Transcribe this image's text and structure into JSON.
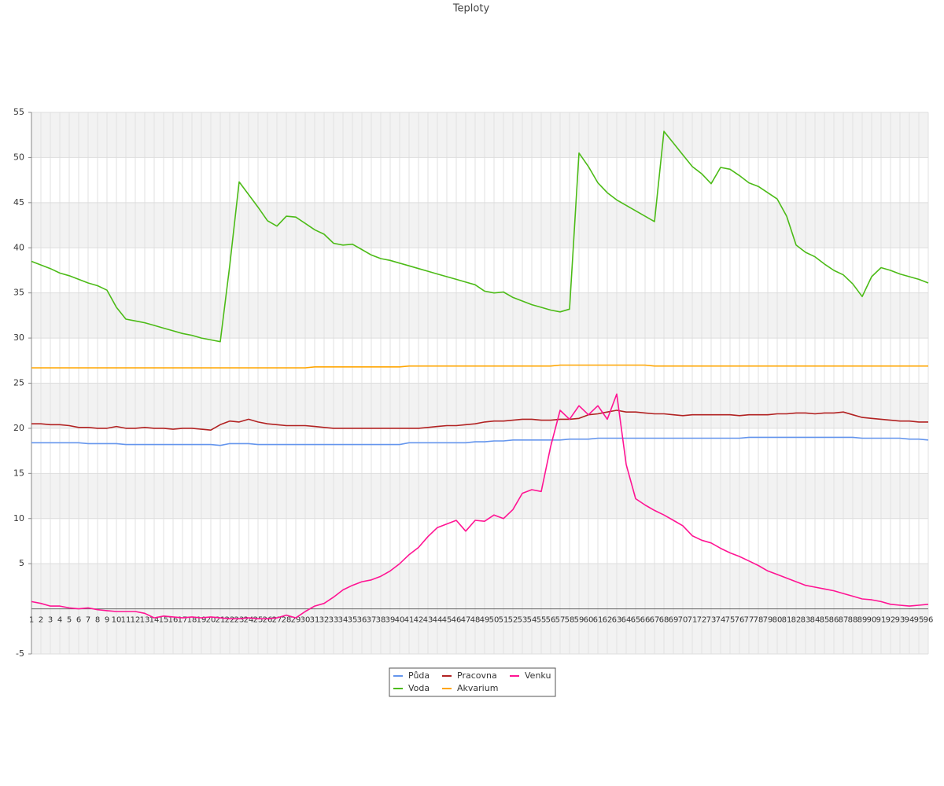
{
  "chart_data": {
    "type": "line",
    "title": "Teploty",
    "categories": [
      1,
      2,
      3,
      4,
      5,
      6,
      7,
      8,
      9,
      10,
      11,
      12,
      13,
      14,
      15,
      16,
      17,
      18,
      19,
      20,
      21,
      22,
      23,
      24,
      25,
      26,
      27,
      28,
      29,
      30,
      31,
      32,
      33,
      34,
      35,
      36,
      37,
      38,
      39,
      40,
      41,
      42,
      43,
      44,
      45,
      46,
      47,
      48,
      49,
      50,
      51,
      52,
      53,
      54,
      55,
      56,
      57,
      58,
      59,
      60,
      61,
      62,
      63,
      64,
      65,
      66,
      67,
      68,
      69,
      70,
      71,
      72,
      73,
      74,
      75,
      76,
      77,
      78,
      79,
      80,
      81,
      82,
      83,
      84,
      85,
      86,
      87,
      88,
      89,
      90,
      91,
      92,
      93,
      94,
      95,
      96
    ],
    "ylim": [
      -5,
      55
    ],
    "yticks": [
      55,
      50,
      45,
      40,
      35,
      30,
      25,
      20,
      15,
      10,
      5,
      -5
    ],
    "grid": true,
    "legend": "bottom",
    "series": [
      {
        "name": "Půda",
        "color": "#6495ed",
        "values": [
          18.4,
          18.4,
          18.4,
          18.4,
          18.4,
          18.4,
          18.3,
          18.3,
          18.3,
          18.3,
          18.2,
          18.2,
          18.2,
          18.2,
          18.2,
          18.2,
          18.2,
          18.2,
          18.2,
          18.2,
          18.1,
          18.3,
          18.3,
          18.3,
          18.2,
          18.2,
          18.2,
          18.2,
          18.2,
          18.2,
          18.2,
          18.2,
          18.2,
          18.2,
          18.2,
          18.2,
          18.2,
          18.2,
          18.2,
          18.2,
          18.4,
          18.4,
          18.4,
          18.4,
          18.4,
          18.4,
          18.4,
          18.5,
          18.5,
          18.6,
          18.6,
          18.7,
          18.7,
          18.7,
          18.7,
          18.7,
          18.7,
          18.8,
          18.8,
          18.8,
          18.9,
          18.9,
          18.9,
          18.9,
          18.9,
          18.9,
          18.9,
          18.9,
          18.9,
          18.9,
          18.9,
          18.9,
          18.9,
          18.9,
          18.9,
          18.9,
          19,
          19,
          19,
          19,
          19,
          19,
          19,
          19,
          19,
          19,
          19,
          19,
          18.9,
          18.9,
          18.9,
          18.9,
          18.9,
          18.8,
          18.8,
          18.7
        ]
      },
      {
        "name": "Voda",
        "color": "#4cbb17",
        "values": [
          38.5,
          38.1,
          37.7,
          37.2,
          36.9,
          36.5,
          36.1,
          35.8,
          35.3,
          33.4,
          32.1,
          31.9,
          31.7,
          31.4,
          31.1,
          30.8,
          30.5,
          30.3,
          30.0,
          29.8,
          29.6,
          38,
          47.3,
          45.9,
          44.5,
          43,
          42.4,
          43.5,
          43.4,
          42.7,
          42,
          41.5,
          40.5,
          40.3,
          40.4,
          39.8,
          39.2,
          38.8,
          38.6,
          38.3,
          38,
          37.7,
          37.4,
          37.1,
          36.8,
          36.5,
          36.2,
          35.9,
          35.2,
          35,
          35.1,
          34.5,
          34.1,
          33.7,
          33.4,
          33.1,
          32.9,
          33.2,
          50.5,
          49,
          47.2,
          46.1,
          45.3,
          44.7,
          44.1,
          43.5,
          42.9,
          52.9,
          51.6,
          50.3,
          49,
          48.2,
          47.1,
          48.9,
          48.7,
          48,
          47.2,
          46.8,
          46.1,
          45.4,
          43.5,
          40.3,
          39.5,
          39,
          38.2,
          37.5,
          37,
          36,
          34.6,
          36.8,
          37.8,
          37.5,
          37.1,
          36.8,
          36.5,
          36.1
        ]
      },
      {
        "name": "Pracovna",
        "color": "#b22222",
        "values": [
          20.5,
          20.5,
          20.4,
          20.4,
          20.3,
          20.1,
          20.1,
          20,
          20,
          20.2,
          20,
          20,
          20.1,
          20,
          20,
          19.9,
          20,
          20,
          19.9,
          19.8,
          20.4,
          20.8,
          20.7,
          21,
          20.7,
          20.5,
          20.4,
          20.3,
          20.3,
          20.3,
          20.2,
          20.1,
          20,
          20,
          20,
          20,
          20,
          20,
          20,
          20,
          20,
          20,
          20.1,
          20.2,
          20.3,
          20.3,
          20.4,
          20.5,
          20.7,
          20.8,
          20.8,
          20.9,
          21,
          21,
          20.9,
          20.9,
          21,
          21,
          21.1,
          21.5,
          21.6,
          21.8,
          22,
          21.8,
          21.8,
          21.7,
          21.6,
          21.6,
          21.5,
          21.4,
          21.5,
          21.5,
          21.5,
          21.5,
          21.5,
          21.4,
          21.5,
          21.5,
          21.5,
          21.6,
          21.6,
          21.7,
          21.7,
          21.6,
          21.7,
          21.7,
          21.8,
          21.5,
          21.2,
          21.1,
          21,
          20.9,
          20.8,
          20.8,
          20.7,
          20.7
        ]
      },
      {
        "name": "Akvarium",
        "color": "#ffa500",
        "values": [
          26.7,
          26.7,
          26.7,
          26.7,
          26.7,
          26.7,
          26.7,
          26.7,
          26.7,
          26.7,
          26.7,
          26.7,
          26.7,
          26.7,
          26.7,
          26.7,
          26.7,
          26.7,
          26.7,
          26.7,
          26.7,
          26.7,
          26.7,
          26.7,
          26.7,
          26.7,
          26.7,
          26.7,
          26.7,
          26.7,
          26.8,
          26.8,
          26.8,
          26.8,
          26.8,
          26.8,
          26.8,
          26.8,
          26.8,
          26.8,
          26.9,
          26.9,
          26.9,
          26.9,
          26.9,
          26.9,
          26.9,
          26.9,
          26.9,
          26.9,
          26.9,
          26.9,
          26.9,
          26.9,
          26.9,
          26.9,
          27,
          27,
          27,
          27,
          27,
          27,
          27,
          27,
          27,
          27,
          26.9,
          26.9,
          26.9,
          26.9,
          26.9,
          26.9,
          26.9,
          26.9,
          26.9,
          26.9,
          26.9,
          26.9,
          26.9,
          26.9,
          26.9,
          26.9,
          26.9,
          26.9,
          26.9,
          26.9,
          26.9,
          26.9,
          26.9,
          26.9,
          26.9,
          26.9,
          26.9,
          26.9,
          26.9,
          26.9
        ]
      },
      {
        "name": "Venku",
        "color": "#ff1493",
        "values": [
          0.8,
          0.6,
          0.3,
          0.3,
          0.1,
          0,
          0.1,
          -0.1,
          -0.2,
          -0.3,
          -0.3,
          -0.3,
          -0.5,
          -1,
          -0.8,
          -0.9,
          -1,
          -0.9,
          -1,
          -0.9,
          -1,
          -1.1,
          -1.1,
          -1,
          -1.1,
          -1.1,
          -1,
          -0.7,
          -1,
          -0.3,
          0.3,
          0.6,
          1.3,
          2.1,
          2.6,
          3,
          3.2,
          3.6,
          4.2,
          5,
          6,
          6.8,
          8,
          9,
          9.4,
          9.8,
          8.6,
          9.8,
          9.7,
          10.4,
          10,
          11,
          12.8,
          13.2,
          13,
          18,
          22,
          21,
          22.5,
          21.5,
          22.5,
          21,
          23.8,
          16,
          12.2,
          11.5,
          10.9,
          10.4,
          9.8,
          9.2,
          8.1,
          7.6,
          7.3,
          6.7,
          6.2,
          5.8,
          5.3,
          4.8,
          4.2,
          3.8,
          3.4,
          3,
          2.6,
          2.4,
          2.2,
          2,
          1.7,
          1.4,
          1.1,
          1,
          0.8,
          0.5,
          0.4,
          0.3,
          0.4,
          0.5
        ]
      }
    ]
  }
}
